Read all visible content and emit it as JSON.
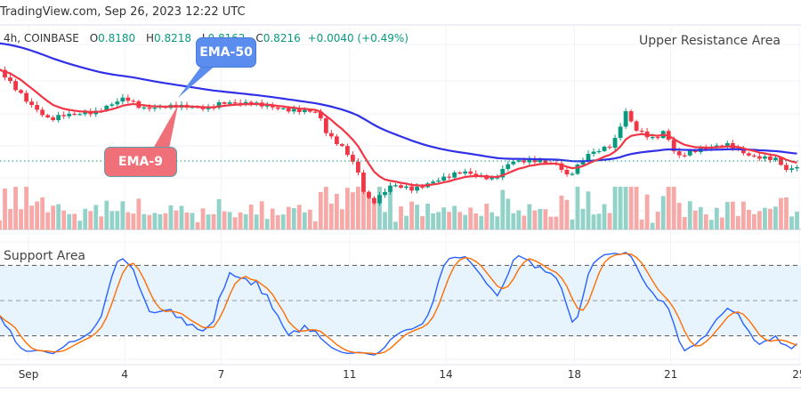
{
  "header": {
    "source": "TradingView.com, Sep 26, 2023 12:22 UTC"
  },
  "legend": {
    "interval": "4h, COINBASE",
    "open_label": "O",
    "open": "0.8180",
    "high_label": "H",
    "high": "0.8218",
    "low_label": "L",
    "low": "0.8162",
    "close_label": "C",
    "close": "0.8216",
    "change": "+0.0040 (+0.49%)"
  },
  "annotations": {
    "upper_resistance": "Upper Resistance Area",
    "support": "Support Area",
    "ema50_callout": "EMA-50",
    "ema9_callout": "EMA-9"
  },
  "colors": {
    "up": "#089981",
    "down": "#f23645",
    "ema50": "#3030e8",
    "ema9": "#f23645",
    "oscillator_k": "#2962ff",
    "oscillator_d": "#ff6d00",
    "band_fill": "#e3f2fd",
    "ema50_callout": "#5b8def",
    "ema9_callout": "#f0707a"
  },
  "chart_data": {
    "type": "candlestick",
    "x_unit": "day of September 2023",
    "interval": "4h",
    "x_ticks": [
      {
        "day": 1,
        "label": "Sep"
      },
      {
        "day": 4,
        "label": "4"
      },
      {
        "day": 7,
        "label": "7"
      },
      {
        "day": 11,
        "label": "11"
      },
      {
        "day": 14,
        "label": "14"
      },
      {
        "day": 18,
        "label": "18"
      },
      {
        "day": 21,
        "label": "21"
      },
      {
        "day": 25,
        "label": "25"
      }
    ],
    "close_path": [
      [
        0.4,
        0.8608
      ],
      [
        1.0,
        0.8508
      ],
      [
        1.65,
        0.8428
      ],
      [
        2.05,
        0.8448
      ],
      [
        3.1,
        0.8456
      ],
      [
        4.0,
        0.852
      ],
      [
        4.55,
        0.8468
      ],
      [
        5.65,
        0.848
      ],
      [
        6.6,
        0.8468
      ],
      [
        7.0,
        0.8496
      ],
      [
        8.0,
        0.8496
      ],
      [
        9.0,
        0.8472
      ],
      [
        10.0,
        0.8468
      ],
      [
        10.3,
        0.8368
      ],
      [
        10.8,
        0.8308
      ],
      [
        11.2,
        0.8228
      ],
      [
        11.5,
        0.8088
      ],
      [
        11.75,
        0.8068
      ],
      [
        12.3,
        0.8148
      ],
      [
        13.0,
        0.8128
      ],
      [
        13.7,
        0.8168
      ],
      [
        14.5,
        0.8208
      ],
      [
        15.5,
        0.8168
      ],
      [
        16.0,
        0.8248
      ],
      [
        16.8,
        0.8248
      ],
      [
        17.5,
        0.8228
      ],
      [
        17.8,
        0.8168
      ],
      [
        18.4,
        0.8268
      ],
      [
        19.2,
        0.8308
      ],
      [
        19.6,
        0.8456
      ],
      [
        19.9,
        0.8376
      ],
      [
        20.5,
        0.8328
      ],
      [
        20.8,
        0.8368
      ],
      [
        21.2,
        0.8248
      ],
      [
        21.5,
        0.8268
      ],
      [
        22.0,
        0.8288
      ],
      [
        22.8,
        0.8308
      ],
      [
        23.5,
        0.8256
      ],
      [
        24.3,
        0.8248
      ],
      [
        24.6,
        0.82
      ],
      [
        25.0,
        0.8216
      ]
    ],
    "last_close": 0.8216,
    "indicators": [
      "EMA-50",
      "EMA-9",
      "Stochastic oscillator (%K, %D)"
    ],
    "oscillator_levels": [
      80,
      50,
      20
    ],
    "grid": true
  }
}
